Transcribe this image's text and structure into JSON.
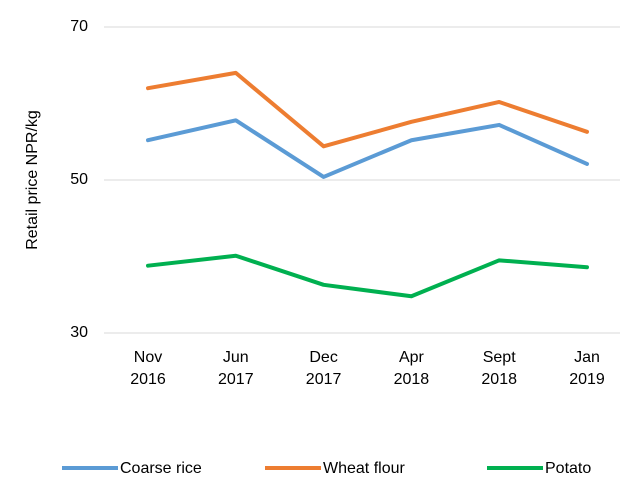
{
  "chart_data": {
    "type": "line",
    "y_label": "Retail price NPR/kg",
    "categories": [
      "Nov 2016",
      "Jun 2017",
      "Dec 2017",
      "Apr 2018",
      "Sept 2018",
      "Jan 2019"
    ],
    "series": [
      {
        "name": "Coarse rice",
        "color": "#5b9bd5",
        "values": [
          55.2,
          57.8,
          50.4,
          55.2,
          57.2,
          52.1
        ]
      },
      {
        "name": "Wheat flour",
        "color": "#ed7d31",
        "values": [
          62.0,
          64.0,
          54.4,
          57.6,
          60.2,
          56.3
        ]
      },
      {
        "name": "Potato",
        "color": "#00b050",
        "values": [
          38.8,
          40.1,
          36.3,
          34.8,
          39.5,
          38.6
        ]
      }
    ],
    "ylim": [
      30,
      70
    ],
    "yticks": [
      30,
      50,
      70
    ],
    "grid": true,
    "legend": "bottom"
  }
}
